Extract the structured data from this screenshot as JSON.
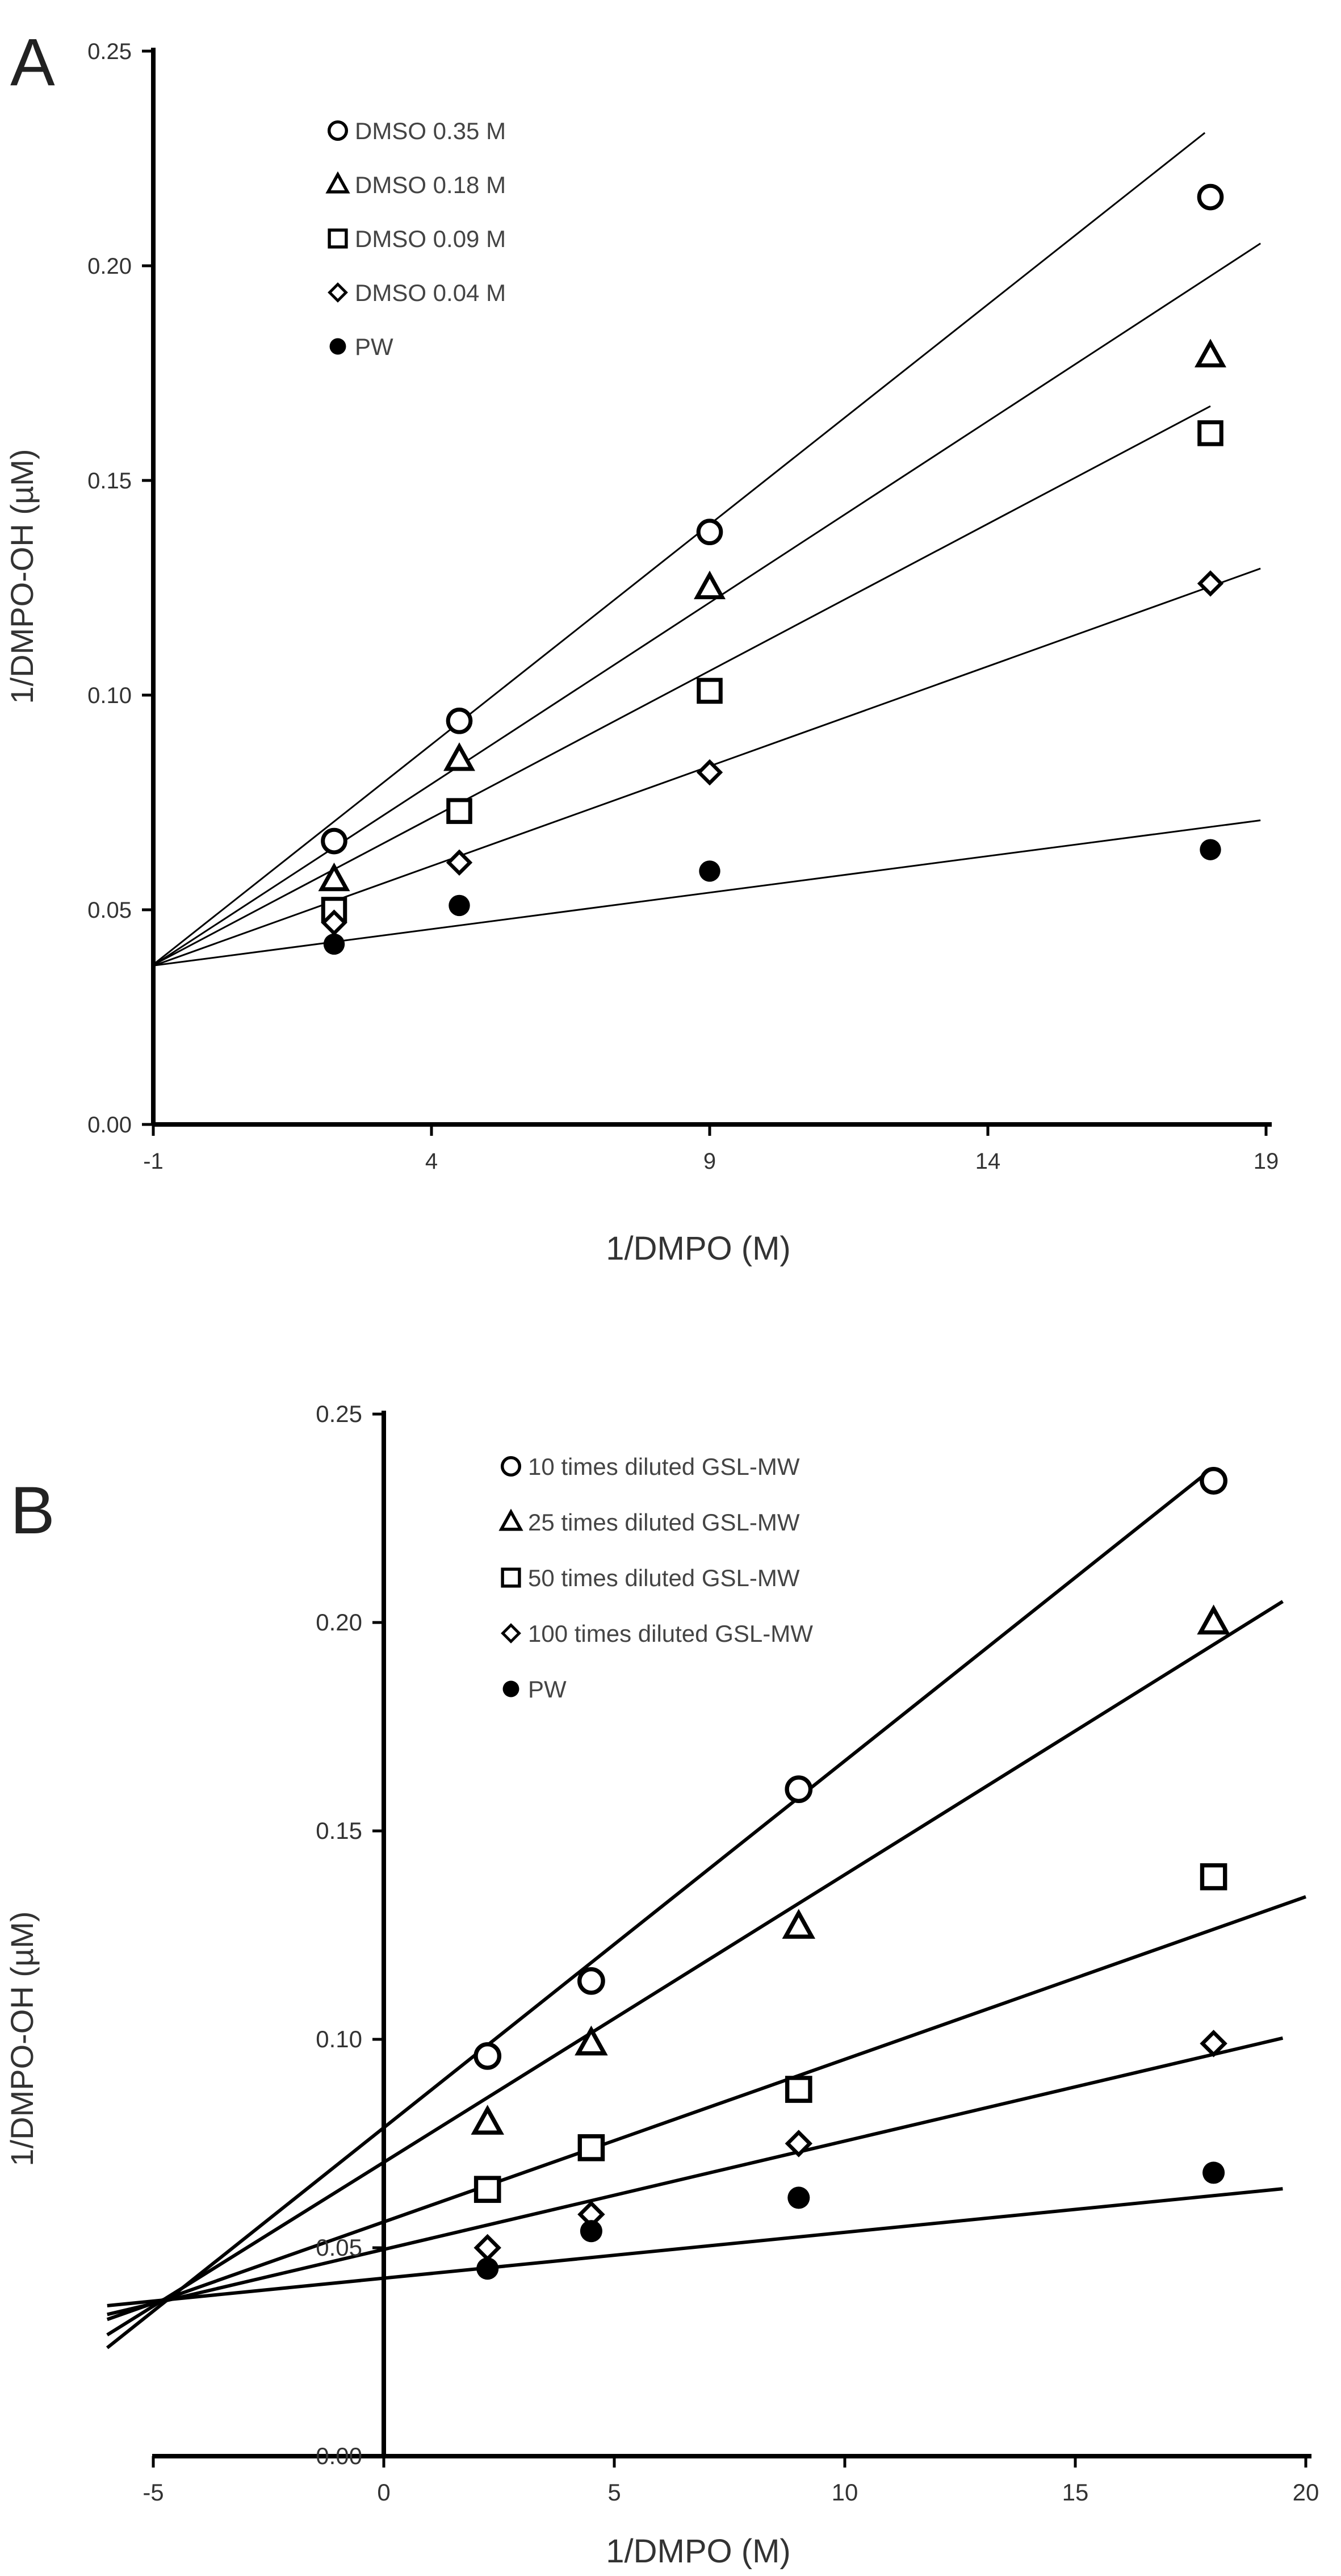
{
  "chart_data": [
    {
      "panel_label": "A",
      "type": "scatter",
      "xlabel": "1/DMPO  (M)",
      "ylabel": "1/DMPO-OH (µM)",
      "xlim": [
        -1,
        19
      ],
      "ylim": [
        0.0,
        0.25
      ],
      "x_ticks": [
        -1,
        4,
        9,
        14,
        19
      ],
      "x_tick_labels": [
        "-1",
        "4",
        "9",
        "14",
        "19"
      ],
      "y_ticks": [
        0.0,
        0.05,
        0.1,
        0.15,
        0.2,
        0.25
      ],
      "y_tick_labels": [
        "0.00",
        "0.05",
        "0.10",
        "0.15",
        "0.20",
        "0.25"
      ],
      "legend_position": "top-left",
      "series": [
        {
          "name": "DMSO 0.35 M",
          "marker": "circle-open",
          "x": [
            2.25,
            4.5,
            9.0,
            18.0
          ],
          "y": [
            0.066,
            0.094,
            0.138,
            0.216
          ],
          "fit": {
            "x_range": [
              -1.0,
              17.9
            ],
            "slope": 0.01025,
            "intercept": 0.0475
          }
        },
        {
          "name": "DMSO 0.18 M",
          "marker": "triangle-open",
          "x": [
            2.25,
            4.5,
            9.0,
            18.0
          ],
          "y": [
            0.057,
            0.085,
            0.125,
            0.179
          ],
          "fit": {
            "x_range": [
              -1.0,
              18.9
            ],
            "slope": 0.00845,
            "intercept": 0.0455
          }
        },
        {
          "name": "DMSO 0.09 M",
          "marker": "square-open",
          "x": [
            2.25,
            4.5,
            9.0,
            18.0
          ],
          "y": [
            0.05,
            0.073,
            0.101,
            0.161
          ],
          "fit": {
            "x_range": [
              -1.0,
              18.0
            ],
            "slope": 0.00685,
            "intercept": 0.044
          }
        },
        {
          "name": "DMSO 0.04 M",
          "marker": "diamond-open",
          "x": [
            2.25,
            4.5,
            9.0,
            18.0
          ],
          "y": [
            0.047,
            0.061,
            0.082,
            0.126
          ],
          "fit": {
            "x_range": [
              -1.0,
              18.9
            ],
            "slope": 0.00465,
            "intercept": 0.0416
          }
        },
        {
          "name": "PW",
          "marker": "circle-filled",
          "x": [
            2.25,
            4.5,
            9.0,
            18.0
          ],
          "y": [
            0.042,
            0.051,
            0.059,
            0.064
          ],
          "fit": {
            "x_range": [
              -1.0,
              18.9
            ],
            "slope": 0.0017,
            "intercept": 0.0387
          }
        }
      ]
    },
    {
      "panel_label": "B",
      "type": "scatter",
      "xlabel": "1/DMPO (M)",
      "ylabel": "1/DMPO-OH (µM)",
      "xlim": [
        -5,
        20
      ],
      "ylim": [
        0.0,
        0.25
      ],
      "x_ticks": [
        -5,
        0,
        5,
        10,
        15,
        20
      ],
      "x_tick_labels": [
        "-5",
        "0",
        "5",
        "10",
        "15",
        "20"
      ],
      "y_ticks": [
        0.0,
        0.05,
        0.1,
        0.15,
        0.2,
        0.25
      ],
      "y_tick_labels": [
        "0.00",
        "0.05",
        "0.10",
        "0.15",
        "0.20",
        "0.25"
      ],
      "legend_position": "top-left",
      "series": [
        {
          "name": "10 times diluted GSL-MW",
          "marker": "circle-open",
          "x": [
            2.25,
            4.5,
            9.0,
            18.0
          ],
          "y": [
            0.096,
            0.114,
            0.16,
            0.234
          ],
          "fit": {
            "x_range": [
              -6.0,
              17.8
            ],
            "slope": 0.0088,
            "intercept": 0.0788
          }
        },
        {
          "name": "25 times diluted GSL-MW",
          "marker": "triangle-open",
          "x": [
            2.25,
            4.5,
            9.0,
            18.0
          ],
          "y": [
            0.08,
            0.099,
            0.127,
            0.2
          ],
          "fit": {
            "x_range": [
              -6.0,
              19.5
            ],
            "slope": 0.0069,
            "intercept": 0.0705
          }
        },
        {
          "name": "50 times diluted GSL-MW",
          "marker": "square-open",
          "x": [
            2.25,
            4.5,
            9.0,
            18.0
          ],
          "y": [
            0.064,
            0.074,
            0.088,
            0.139
          ],
          "fit": {
            "x_range": [
              -6.0,
              20.0
            ],
            "slope": 0.0039,
            "intercept": 0.0562
          }
        },
        {
          "name": "100 times diluted GSL-MW",
          "marker": "diamond-open",
          "x": [
            2.25,
            4.5,
            9.0,
            18.0
          ],
          "y": [
            0.05,
            0.058,
            0.075,
            0.099
          ],
          "fit": {
            "x_range": [
              -6.0,
              19.5
            ],
            "slope": 0.0026,
            "intercept": 0.0496
          }
        },
        {
          "name": "PW",
          "marker": "circle-filled",
          "x": [
            2.25,
            4.5,
            9.0,
            18.0
          ],
          "y": [
            0.045,
            0.054,
            0.062,
            0.068
          ],
          "fit": {
            "x_range": [
              -6.0,
              19.5
            ],
            "slope": 0.0011,
            "intercept": 0.0427
          }
        }
      ]
    }
  ]
}
